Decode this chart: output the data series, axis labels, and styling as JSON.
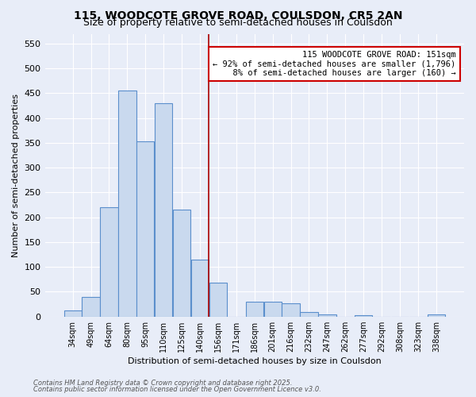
{
  "title1": "115, WOODCOTE GROVE ROAD, COULSDON, CR5 2AN",
  "title2": "Size of property relative to semi-detached houses in Coulsdon",
  "xlabel": "Distribution of semi-detached houses by size in Coulsdon",
  "ylabel": "Number of semi-detached properties",
  "bar_labels": [
    "34sqm",
    "49sqm",
    "64sqm",
    "80sqm",
    "95sqm",
    "110sqm",
    "125sqm",
    "140sqm",
    "156sqm",
    "171sqm",
    "186sqm",
    "201sqm",
    "216sqm",
    "232sqm",
    "247sqm",
    "262sqm",
    "277sqm",
    "292sqm",
    "308sqm",
    "323sqm",
    "338sqm"
  ],
  "bar_values": [
    12,
    40,
    220,
    455,
    353,
    430,
    215,
    115,
    68,
    0,
    30,
    30,
    27,
    9,
    4,
    0,
    3,
    0,
    0,
    0,
    5
  ],
  "bar_color": "#c9d9ee",
  "bar_edge_color": "#5b8fcc",
  "vline_color": "#aa0000",
  "vline_x_idx": 8,
  "annotation_title": "115 WOODCOTE GROVE ROAD: 151sqm",
  "annotation_line1": "← 92% of semi-detached houses are smaller (1,796)",
  "annotation_line2": "  8% of semi-detached houses are larger (160) →",
  "ylim": [
    0,
    570
  ],
  "yticks": [
    0,
    50,
    100,
    150,
    200,
    250,
    300,
    350,
    400,
    450,
    500,
    550
  ],
  "footnote1": "Contains HM Land Registry data © Crown copyright and database right 2025.",
  "footnote2": "Contains public sector information licensed under the Open Government Licence v3.0.",
  "bg_color": "#e8edf8",
  "grid_color": "#ffffff",
  "title1_fontsize": 10,
  "title2_fontsize": 9
}
